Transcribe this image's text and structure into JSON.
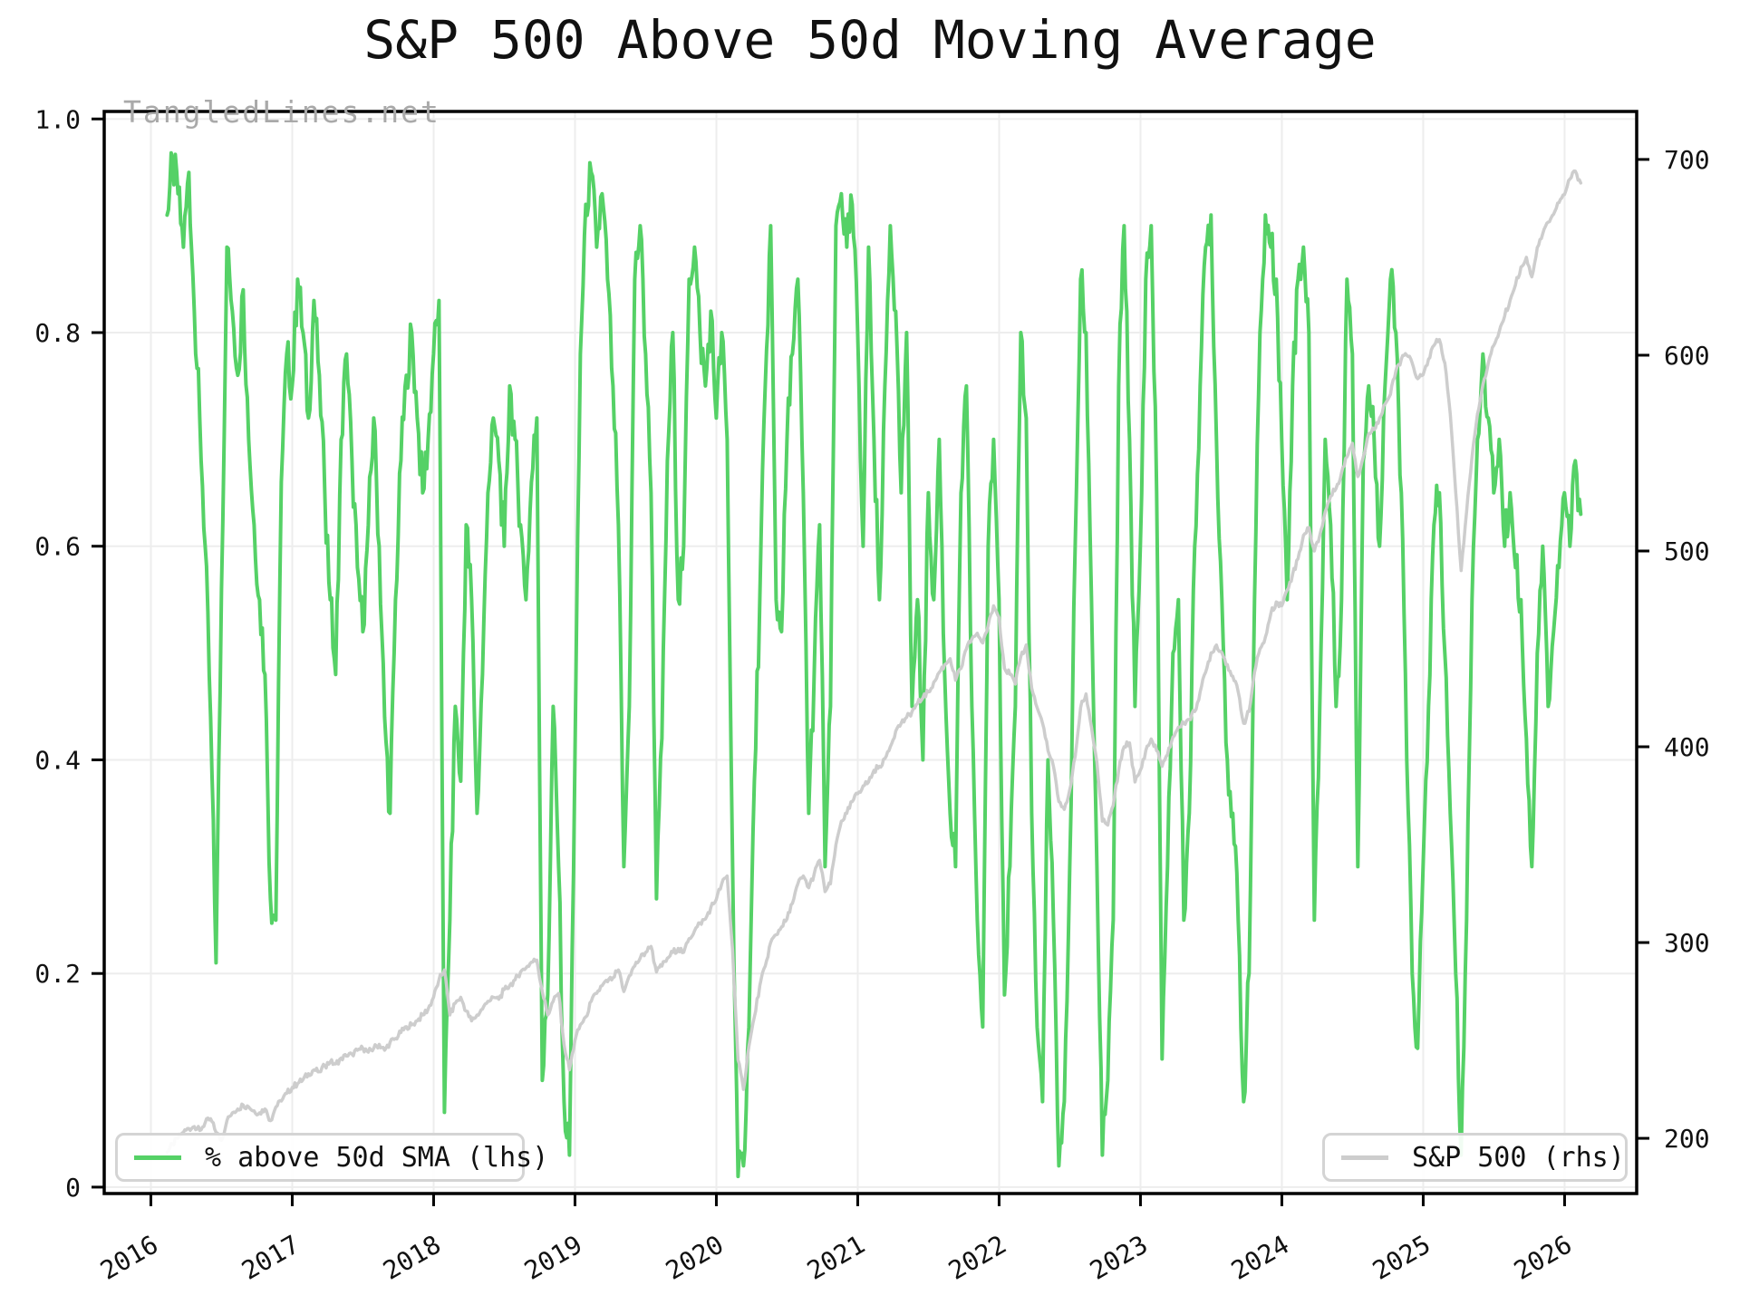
{
  "title": "S&P 500 Above 50d Moving Average",
  "watermark": "TangledLines.net",
  "legend_left": {
    "label": "% above 50d SMA (lhs)"
  },
  "legend_right": {
    "label": "S&P 500 (rhs)"
  },
  "colors": {
    "green": "#55d166",
    "gray": "#cdcdcd",
    "grid": "#ededed",
    "spine": "#000000",
    "tick_label": "#111111",
    "watermark": "#a9a9a9"
  },
  "chart_data": {
    "type": "line",
    "title": "S&P 500 Above 50d Moving Average",
    "x_axis": {
      "ticks": [
        2016,
        2017,
        2018,
        2019,
        2020,
        2021,
        2022,
        2023,
        2024,
        2025,
        2026
      ],
      "tick_labels": [
        "2016",
        "2017",
        "2018",
        "2019",
        "2020",
        "2021",
        "2022",
        "2023",
        "2024",
        "2025",
        "2026"
      ],
      "range": [
        2015.67,
        2026.51
      ]
    },
    "y_left": {
      "ticks": [
        0,
        0.2,
        0.4,
        0.6,
        0.8,
        1.0
      ],
      "tick_labels": [
        "0",
        "0.2",
        "0.4",
        "0.6",
        "0.8",
        "1.0"
      ],
      "range": [
        -0.006,
        1.007
      ]
    },
    "y_right": {
      "ticks": [
        200,
        300,
        400,
        500,
        600,
        700
      ],
      "tick_labels": [
        "200",
        "300",
        "400",
        "500",
        "600",
        "700"
      ],
      "range": [
        171.8,
        724.5
      ]
    },
    "grid": true,
    "legend_position": [
      "lower left",
      "lower right"
    ],
    "x_start": 2016.115,
    "x_step": 0.03846,
    "noise": {
      "subdivisions": 4,
      "seed": 7
    },
    "series": [
      {
        "name": "% above 50d SMA (lhs)",
        "axis": "left",
        "color": "#55d166",
        "width": 4,
        "noise_amplitude": 0.022,
        "clamp": [
          0.002,
          1.0
        ],
        "values": [
          0.91,
          0.96,
          0.93,
          0.88,
          0.95,
          0.82,
          0.72,
          0.6,
          0.44,
          0.21,
          0.56,
          0.88,
          0.82,
          0.76,
          0.84,
          0.7,
          0.62,
          0.55,
          0.48,
          0.27,
          0.25,
          0.66,
          0.78,
          0.75,
          0.85,
          0.8,
          0.72,
          0.83,
          0.76,
          0.65,
          0.55,
          0.48,
          0.7,
          0.78,
          0.68,
          0.58,
          0.52,
          0.62,
          0.72,
          0.6,
          0.44,
          0.35,
          0.55,
          0.68,
          0.76,
          0.8,
          0.72,
          0.65,
          0.7,
          0.78,
          0.83,
          0.07,
          0.25,
          0.45,
          0.38,
          0.62,
          0.55,
          0.35,
          0.48,
          0.65,
          0.72,
          0.68,
          0.6,
          0.75,
          0.7,
          0.62,
          0.55,
          0.66,
          0.72,
          0.1,
          0.18,
          0.45,
          0.3,
          0.08,
          0.03,
          0.4,
          0.78,
          0.92,
          0.95,
          0.88,
          0.93,
          0.85,
          0.75,
          0.62,
          0.3,
          0.45,
          0.85,
          0.9,
          0.78,
          0.65,
          0.27,
          0.42,
          0.68,
          0.8,
          0.55,
          0.6,
          0.85,
          0.88,
          0.8,
          0.75,
          0.82,
          0.72,
          0.8,
          0.7,
          0.3,
          0.01,
          0.02,
          0.15,
          0.38,
          0.55,
          0.75,
          0.9,
          0.55,
          0.52,
          0.7,
          0.78,
          0.85,
          0.65,
          0.35,
          0.48,
          0.62,
          0.3,
          0.45,
          0.9,
          0.93,
          0.88,
          0.92,
          0.8,
          0.6,
          0.88,
          0.7,
          0.55,
          0.75,
          0.9,
          0.82,
          0.65,
          0.8,
          0.45,
          0.55,
          0.4,
          0.65,
          0.55,
          0.7,
          0.48,
          0.35,
          0.3,
          0.65,
          0.75,
          0.45,
          0.25,
          0.15,
          0.6,
          0.7,
          0.55,
          0.18,
          0.3,
          0.45,
          0.8,
          0.72,
          0.35,
          0.15,
          0.08,
          0.4,
          0.25,
          0.02,
          0.08,
          0.3,
          0.6,
          0.85,
          0.8,
          0.55,
          0.3,
          0.03,
          0.1,
          0.25,
          0.75,
          0.9,
          0.7,
          0.45,
          0.6,
          0.85,
          0.9,
          0.65,
          0.12,
          0.3,
          0.5,
          0.55,
          0.25,
          0.35,
          0.6,
          0.75,
          0.88,
          0.91,
          0.7,
          0.55,
          0.4,
          0.35,
          0.25,
          0.08,
          0.2,
          0.55,
          0.8,
          0.91,
          0.88,
          0.85,
          0.7,
          0.55,
          0.75,
          0.85,
          0.88,
          0.8,
          0.25,
          0.45,
          0.7,
          0.62,
          0.45,
          0.55,
          0.85,
          0.78,
          0.3,
          0.68,
          0.75,
          0.7,
          0.6,
          0.75,
          0.85,
          0.8,
          0.65,
          0.4,
          0.2,
          0.13,
          0.3,
          0.45,
          0.62,
          0.65,
          0.5,
          0.35,
          0.2,
          0.03,
          0.25,
          0.55,
          0.7,
          0.78,
          0.72,
          0.65,
          0.7,
          0.6,
          0.65,
          0.58,
          0.55,
          0.42,
          0.3,
          0.5,
          0.6,
          0.45,
          0.52,
          0.58,
          0.65,
          0.6,
          0.68,
          0.63
        ]
      },
      {
        "name": "S&P 500 (rhs)",
        "axis": "right",
        "color": "#cdcdcd",
        "width": 3.5,
        "noise_amplitude": 1.6,
        "clamp": null,
        "values": [
          193,
          197,
          200,
          203,
          205,
          206,
          204,
          208,
          210,
          203,
          199,
          209,
          213,
          215,
          217,
          216,
          214,
          213,
          215,
          209,
          216,
          219,
          223,
          226,
          228,
          230,
          233,
          235,
          234,
          237,
          239,
          238,
          241,
          242,
          243,
          245,
          246,
          244,
          246,
          248,
          245,
          249,
          251,
          254,
          257,
          258,
          260,
          263,
          266,
          272,
          281,
          286,
          263,
          269,
          272,
          265,
          260,
          263,
          266,
          270,
          272,
          271,
          276,
          278,
          281,
          285,
          287,
          290,
          291,
          275,
          263,
          270,
          274,
          248,
          235,
          250,
          258,
          262,
          270,
          274,
          278,
          280,
          282,
          286,
          275,
          283,
          288,
          292,
          295,
          298,
          285,
          288,
          292,
          295,
          297,
          295,
          302,
          306,
          310,
          312,
          318,
          322,
          330,
          334,
          296,
          240,
          225,
          247,
          262,
          278,
          288,
          300,
          304,
          308,
          312,
          320,
          330,
          334,
          328,
          335,
          342,
          326,
          330,
          350,
          362,
          366,
          372,
          376,
          380,
          382,
          388,
          390,
          394,
          400,
          408,
          412,
          415,
          418,
          422,
          425,
          428,
          433,
          438,
          442,
          445,
          434,
          440,
          450,
          455,
          458,
          453,
          462,
          472,
          466,
          440,
          437,
          432,
          446,
          452,
          430,
          420,
          412,
          398,
          390,
          372,
          368,
          378,
          395,
          420,
          427,
          410,
          392,
          362,
          360,
          370,
          388,
          400,
          402,
          382,
          388,
          398,
          404,
          398,
          390,
          396,
          405,
          410,
          412,
          414,
          418,
          428,
          438,
          448,
          452,
          448,
          442,
          436,
          428,
          412,
          418,
          438,
          450,
          456,
          468,
          474,
          472,
          480,
          488,
          496,
          508,
          512,
          500,
          508,
          520,
          528,
          532,
          540,
          548,
          555,
          538,
          548,
          560,
          562,
          568,
          575,
          580,
          592,
          598,
          600,
          596,
          588,
          590,
          598,
          605,
          608,
          596,
          570,
          530,
          490,
          520,
          548,
          570,
          585,
          596,
          605,
          612,
          620,
          628,
          636,
          645,
          650,
          640,
          655,
          662,
          668,
          672,
          678,
          682,
          690,
          694,
          688
        ]
      }
    ]
  }
}
